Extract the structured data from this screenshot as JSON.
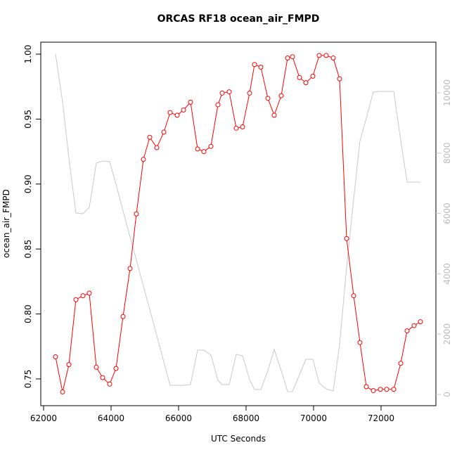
{
  "chart_data": {
    "type": "line",
    "title": "ORCAS RF18 ocean_air_FMPD",
    "x_label": "UTC Seconds",
    "y_label": "ocean_air_FMPD",
    "x": [
      62354,
      62563,
      62750,
      62958,
      63167,
      63354,
      63563,
      63750,
      63958,
      64146,
      64354,
      64563,
      64750,
      64958,
      65146,
      65354,
      65563,
      65750,
      65958,
      66146,
      66354,
      66563,
      66750,
      66958,
      67167,
      67292,
      67500,
      67708,
      67896,
      68104,
      68250,
      68438,
      68646,
      68833,
      69042,
      69229,
      69375,
      69583,
      69771,
      69979,
      70167,
      70375,
      70583,
      70771,
      70979,
      71188,
      71375,
      71563,
      71771,
      71979,
      72167,
      72375,
      72583,
      72771,
      72979,
      73167
    ],
    "xlim": [
      61917,
      73625
    ],
    "xticks": [
      62000,
      64000,
      66000,
      68000,
      70000,
      72000
    ],
    "ylim": [
      0.7294,
      1.0092
    ],
    "yticks": [
      0.75,
      {
        "value": 0.8,
        "label": "0.80"
      },
      0.85,
      {
        "value": 0.9,
        "label": "0.90"
      },
      0.95,
      {
        "value": 1,
        "label": "1.00"
      }
    ],
    "y2lim": [
      -373,
      11678
    ],
    "y2ticks": [
      0,
      2000,
      4000,
      6000,
      8000,
      10000
    ],
    "series": [
      {
        "color": "#ff0000",
        "marker": "circle",
        "values": [
          0.767,
          0.74,
          0.761,
          0.811,
          0.814,
          0.816,
          0.759,
          0.751,
          0.746,
          0.758,
          0.798,
          0.835,
          0.877,
          0.919,
          0.936,
          0.928,
          0.94,
          0.955,
          0.953,
          0.957,
          0.963,
          0.927,
          0.925,
          0.929,
          0.961,
          0.97,
          0.971,
          0.943,
          0.944,
          0.97,
          0.992,
          0.99,
          0.966,
          0.953,
          0.968,
          0.997,
          0.998,
          0.982,
          0.978,
          0.983,
          0.999,
          0.999,
          0.997,
          0.981,
          0.858,
          0.814,
          0.778,
          0.744,
          0.741,
          0.742,
          0.742,
          0.742,
          0.762,
          0.787,
          0.791,
          0.794
        ]
      },
      {
        "color": "#c8c8c8",
        "axis": "y2",
        "values": [
          11282,
          9697,
          7832,
          6014,
          5991,
          6200,
          7669,
          7739,
          7716,
          6970,
          6084,
          5221,
          4452,
          3590,
          2821,
          1958,
          1072,
          303,
          303,
          303,
          326,
          1469,
          1469,
          1305,
          466,
          326,
          326,
          1329,
          1282,
          490,
          163,
          163,
          793,
          1492,
          793,
          93,
          93,
          653,
          1166,
          1166,
          373,
          186,
          117,
          1655,
          4219,
          6480,
          8415,
          9161,
          10023,
          10047,
          10047,
          10047,
          8415,
          7040,
          7040,
          7040
        ]
      }
    ]
  }
}
